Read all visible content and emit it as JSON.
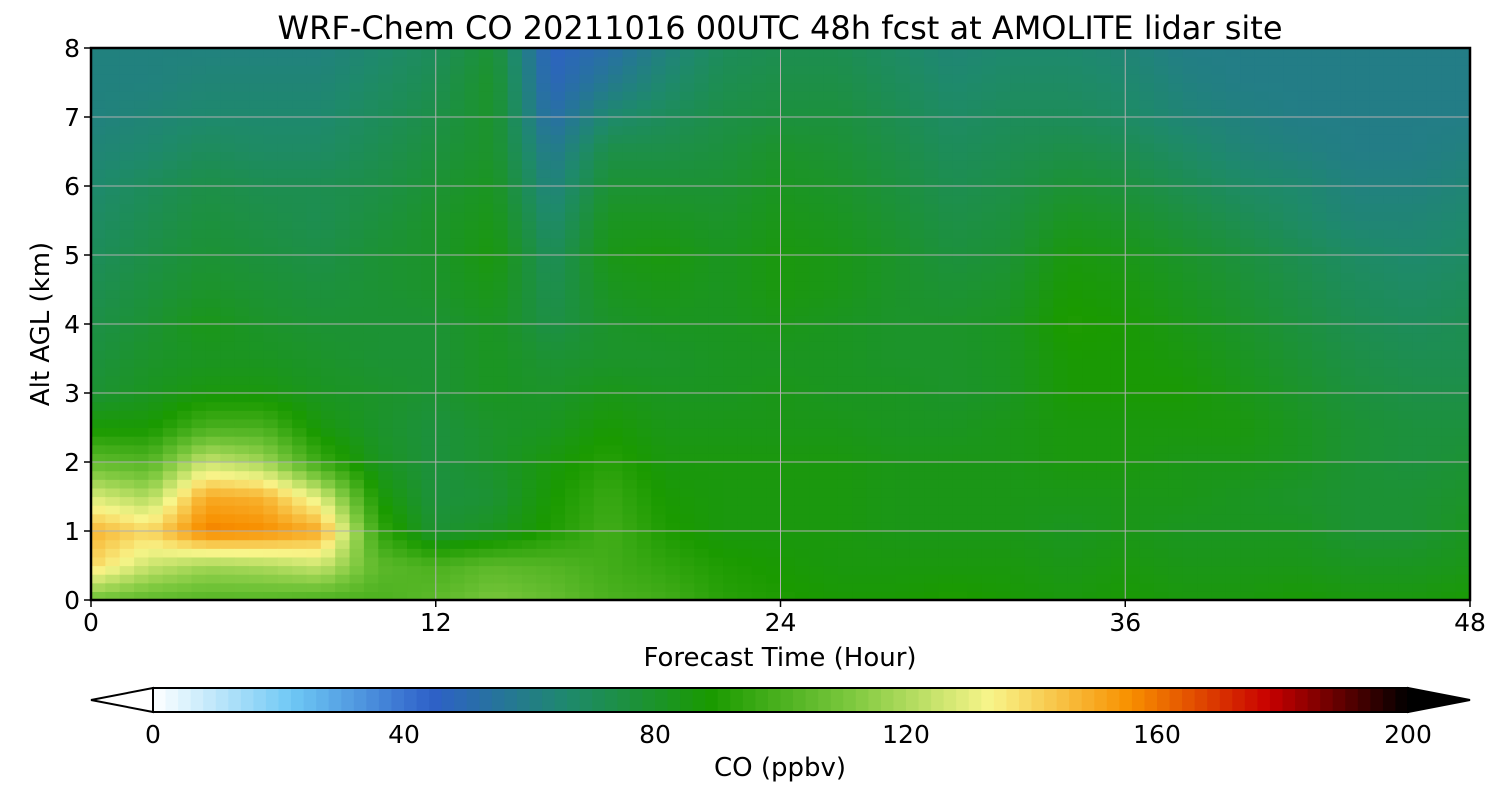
{
  "chart_data": {
    "type": "heatmap",
    "title": "WRF-Chem CO  20211016 00UTC 48h fcst at AMOLITE lidar site",
    "xlabel": "Forecast Time (Hour)",
    "ylabel": "Alt AGL (km)",
    "xlim": [
      0,
      48
    ],
    "ylim": [
      0,
      8
    ],
    "x_ticks": [
      "0",
      "12",
      "24",
      "36",
      "48"
    ],
    "y_ticks": [
      "0",
      "1",
      "2",
      "3",
      "4",
      "5",
      "6",
      "7",
      "8"
    ],
    "grid": true,
    "x_hours": [
      0,
      2,
      4,
      6,
      8,
      10,
      12,
      14,
      16,
      18,
      20,
      22,
      24,
      26,
      28,
      30,
      32,
      34,
      36,
      38,
      40,
      42,
      44,
      46,
      48
    ],
    "z_km": [
      0,
      0.5,
      1,
      1.5,
      2,
      2.5,
      3,
      3.5,
      4,
      4.5,
      5,
      5.5,
      6,
      6.5,
      7,
      7.5,
      8
    ],
    "values_ppbv": [
      [
        108,
        104,
        102,
        102,
        100,
        100,
        104,
        110,
        106,
        100,
        98,
        92,
        90,
        88,
        88,
        90,
        88,
        86,
        88,
        86,
        86,
        88,
        86,
        86,
        88
      ],
      [
        140,
        125,
        118,
        120,
        125,
        104,
        100,
        104,
        102,
        98,
        94,
        90,
        88,
        86,
        86,
        86,
        86,
        84,
        86,
        84,
        84,
        84,
        82,
        82,
        84
      ],
      [
        148,
        140,
        158,
        156,
        150,
        95,
        78,
        82,
        90,
        98,
        90,
        86,
        86,
        86,
        84,
        84,
        84,
        82,
        84,
        82,
        82,
        82,
        78,
        78,
        82
      ],
      [
        128,
        120,
        150,
        148,
        128,
        88,
        76,
        78,
        88,
        96,
        88,
        86,
        86,
        86,
        84,
        84,
        84,
        84,
        84,
        84,
        82,
        80,
        78,
        78,
        80
      ],
      [
        105,
        102,
        125,
        118,
        96,
        82,
        76,
        80,
        86,
        92,
        86,
        86,
        86,
        86,
        84,
        84,
        84,
        86,
        86,
        84,
        84,
        82,
        78,
        76,
        78
      ],
      [
        88,
        88,
        100,
        100,
        86,
        80,
        76,
        80,
        82,
        88,
        84,
        84,
        84,
        84,
        82,
        82,
        84,
        86,
        86,
        86,
        86,
        82,
        78,
        76,
        76
      ],
      [
        78,
        82,
        86,
        86,
        82,
        80,
        78,
        82,
        80,
        84,
        82,
        82,
        84,
        82,
        82,
        80,
        82,
        88,
        88,
        88,
        84,
        80,
        76,
        74,
        74
      ],
      [
        76,
        80,
        82,
        82,
        80,
        78,
        78,
        82,
        78,
        80,
        80,
        82,
        82,
        82,
        80,
        80,
        82,
        88,
        88,
        86,
        82,
        78,
        74,
        72,
        72
      ],
      [
        74,
        78,
        84,
        80,
        78,
        78,
        78,
        82,
        74,
        80,
        82,
        82,
        84,
        82,
        80,
        80,
        82,
        90,
        88,
        84,
        80,
        76,
        72,
        70,
        72
      ],
      [
        72,
        76,
        80,
        78,
        76,
        78,
        80,
        84,
        72,
        82,
        84,
        82,
        86,
        84,
        80,
        78,
        80,
        88,
        86,
        82,
        78,
        74,
        70,
        68,
        70
      ],
      [
        70,
        74,
        78,
        76,
        74,
        78,
        80,
        86,
        70,
        84,
        86,
        82,
        86,
        84,
        80,
        76,
        78,
        86,
        84,
        80,
        76,
        72,
        68,
        66,
        68
      ],
      [
        68,
        72,
        76,
        74,
        72,
        76,
        80,
        84,
        66,
        82,
        82,
        80,
        84,
        82,
        78,
        74,
        76,
        82,
        80,
        76,
        72,
        68,
        64,
        64,
        66
      ],
      [
        66,
        70,
        74,
        72,
        72,
        74,
        78,
        82,
        62,
        78,
        78,
        78,
        82,
        80,
        76,
        72,
        74,
        78,
        76,
        72,
        68,
        66,
        62,
        62,
        64
      ],
      [
        64,
        66,
        70,
        68,
        68,
        72,
        76,
        80,
        58,
        74,
        74,
        76,
        80,
        78,
        74,
        70,
        72,
        74,
        72,
        68,
        64,
        62,
        60,
        60,
        62
      ],
      [
        62,
        64,
        66,
        66,
        66,
        70,
        74,
        80,
        52,
        66,
        70,
        74,
        76,
        76,
        72,
        68,
        70,
        70,
        68,
        64,
        62,
        60,
        60,
        60,
        60
      ],
      [
        62,
        62,
        64,
        64,
        64,
        68,
        72,
        80,
        48,
        58,
        66,
        72,
        74,
        74,
        70,
        66,
        68,
        68,
        66,
        62,
        60,
        60,
        60,
        60,
        60
      ],
      [
        62,
        62,
        62,
        62,
        62,
        66,
        70,
        78,
        46,
        52,
        62,
        70,
        72,
        72,
        68,
        64,
        66,
        66,
        64,
        60,
        60,
        60,
        60,
        60,
        60
      ]
    ],
    "colorbar": {
      "label": "CO  (ppbv)",
      "ticks": [
        "0",
        "40",
        "80",
        "120",
        "160",
        "200"
      ],
      "range": [
        0,
        200
      ],
      "extend": "both",
      "colors": [
        "#ffffff",
        "#6ec8f5",
        "#2e60c8",
        "#1e8a6a",
        "#1a9a00",
        "#7cc83e",
        "#f8f58a",
        "#f89000",
        "#c80000",
        "#000000"
      ]
    }
  }
}
